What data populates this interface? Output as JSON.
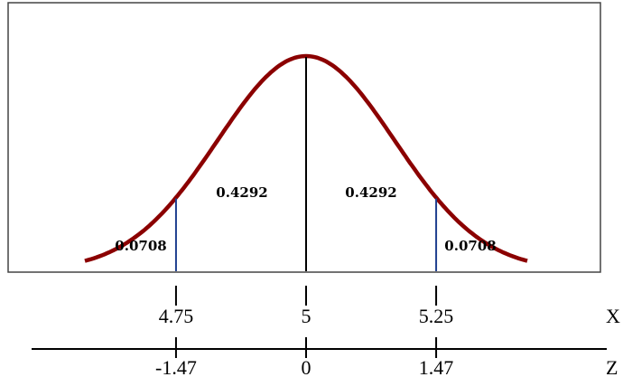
{
  "chart_data": {
    "type": "area",
    "distribution": "normal",
    "mean": 5,
    "z_range": [
      -2.5,
      2.5
    ],
    "curve_color": "#8b0000",
    "boundary_color": "#1f3f8f",
    "areas": {
      "left_tail": "0.0708",
      "left_center": "0.4292",
      "right_center": "0.4292",
      "right_tail": "0.0708"
    },
    "x_axis": {
      "label": "X",
      "ticks": [
        {
          "z": -1.47,
          "label": "4.75"
        },
        {
          "z": 0,
          "label": "5"
        },
        {
          "z": 1.47,
          "label": "5.25"
        }
      ]
    },
    "z_axis": {
      "label": "Z",
      "ticks": [
        {
          "z": -1.47,
          "label": "-1.47"
        },
        {
          "z": 0,
          "label": "0"
        },
        {
          "z": 1.47,
          "label": "1.47"
        }
      ]
    }
  }
}
